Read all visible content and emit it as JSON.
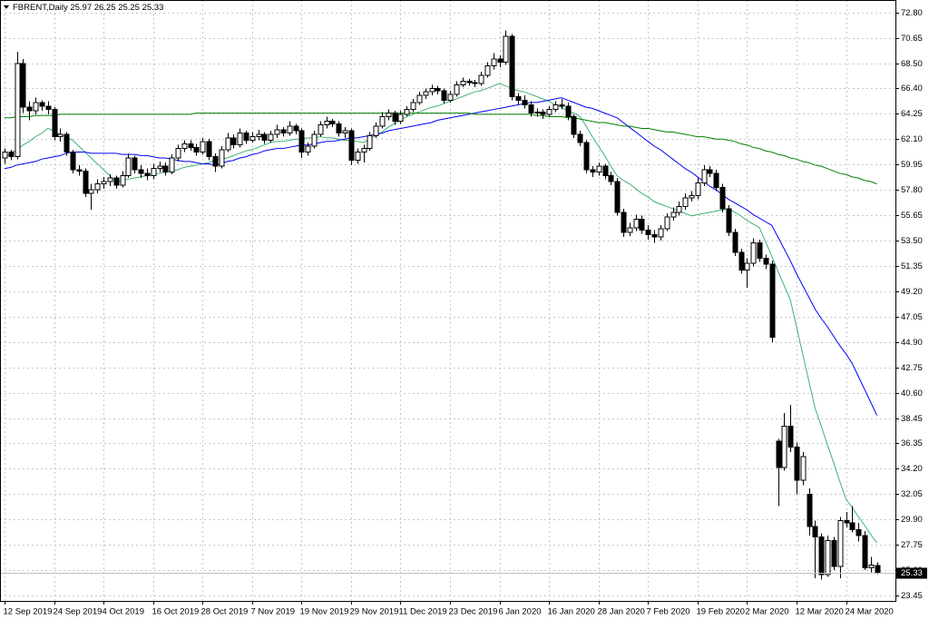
{
  "chart_data": {
    "type": "candlestick",
    "title": "FBRENT,Daily",
    "categories": [
      "12 Sep 2019",
      null,
      null,
      null,
      null,
      null,
      null,
      null,
      "24 Sep 2019",
      null,
      null,
      null,
      null,
      null,
      null,
      null,
      "4 Oct 2019",
      null,
      null,
      null,
      null,
      null,
      null,
      null,
      "16 Oct 2019",
      null,
      null,
      null,
      null,
      null,
      null,
      null,
      "28 Oct 2019",
      null,
      null,
      null,
      null,
      null,
      null,
      null,
      "7 Nov 2019",
      null,
      null,
      null,
      null,
      null,
      null,
      null,
      "19 Nov 2019",
      null,
      null,
      null,
      null,
      null,
      null,
      null,
      "29 Nov 2019",
      null,
      null,
      null,
      null,
      null,
      null,
      null,
      "11 Dec 2019",
      null,
      null,
      null,
      null,
      null,
      null,
      null,
      "23 Dec 2019",
      null,
      null,
      null,
      null,
      null,
      null,
      null,
      "6 Jan 2020",
      null,
      null,
      null,
      null,
      null,
      null,
      null,
      "16 Jan 2020",
      null,
      null,
      null,
      null,
      null,
      null,
      null,
      "28 Jan 2020",
      null,
      null,
      null,
      null,
      null,
      null,
      null,
      "7 Feb 2020",
      null,
      null,
      null,
      null,
      null,
      null,
      null,
      "19 Feb 2020",
      null,
      null,
      null,
      null,
      null,
      null,
      null,
      "2 Mar 2020",
      null,
      null,
      null,
      null,
      null,
      null,
      null,
      "12 Mar 2020",
      null,
      null,
      null,
      null,
      null,
      null,
      null,
      "24 Mar 2020",
      null,
      null,
      null,
      null,
      null
    ],
    "open": [
      60.5,
      61.0,
      60.6,
      68.5,
      64.8,
      64.5,
      65.2,
      64.9,
      64.6,
      62.3,
      62.5,
      61.0,
      59.5,
      59.4,
      57.5,
      57.8,
      58.3,
      58.5,
      58.8,
      58.2,
      59.0,
      60.5,
      59.5,
      59.2,
      59.0,
      59.6,
      59.8,
      59.3,
      60.5,
      61.3,
      61.7,
      61.4,
      61.0,
      61.9,
      60.6,
      59.8,
      61.2,
      62.2,
      61.6,
      62.6,
      62.0,
      62.3,
      62.5,
      62.0,
      62.5,
      62.9,
      62.6,
      63.2,
      62.8,
      61.0,
      61.5,
      62.5,
      63.3,
      63.6,
      63.4,
      62.6,
      62.8,
      60.3,
      61.0,
      61.3,
      62.4,
      63.2,
      64.0,
      64.3,
      63.6,
      64.2,
      64.6,
      65.2,
      65.8,
      66.1,
      66.4,
      66.2,
      65.4,
      65.9,
      66.7,
      67.0,
      66.9,
      66.8,
      67.5,
      68.3,
      68.9,
      68.6,
      70.8,
      65.7,
      65.4,
      65.0,
      64.3,
      64.4,
      64.2,
      64.6,
      65.0,
      64.9,
      64.0,
      62.5,
      61.8,
      59.5,
      59.3,
      59.8,
      59.0,
      58.5,
      55.9,
      54.2,
      54.6,
      55.3,
      54.4,
      54.0,
      53.8,
      54.5,
      55.5,
      55.9,
      56.4,
      57.1,
      57.3,
      58.4,
      59.5,
      59.2,
      58.0,
      56.2,
      54.2,
      52.5,
      51.0,
      51.6,
      53.3,
      52.0,
      51.5,
      36.5,
      34.3,
      37.8,
      36.0,
      33.2,
      32.0,
      29.3,
      28.4,
      25.2,
      28.1,
      25.9,
      29.8,
      29.6,
      29.0,
      28.5,
      25.8,
      25.97
    ],
    "high": [
      61.3,
      61.2,
      69.5,
      68.9,
      65.3,
      65.6,
      65.4,
      65.3,
      64.8,
      63.0,
      62.7,
      61.2,
      59.9,
      59.6,
      58.3,
      58.7,
      58.9,
      59.1,
      59.0,
      59.4,
      60.9,
      60.7,
      59.9,
      59.6,
      60.0,
      60.2,
      60.1,
      60.8,
      61.6,
      62.0,
      62.0,
      61.7,
      62.2,
      62.1,
      60.9,
      61.5,
      62.6,
      62.5,
      63.0,
      62.8,
      62.7,
      62.9,
      62.7,
      62.8,
      63.3,
      63.1,
      63.6,
      63.4,
      63.0,
      61.8,
      62.8,
      63.6,
      64.0,
      63.8,
      63.6,
      63.1,
      63.0,
      61.3,
      61.6,
      62.7,
      63.5,
      64.4,
      64.6,
      64.5,
      64.5,
      64.9,
      65.5,
      66.1,
      66.4,
      66.7,
      66.6,
      66.4,
      66.2,
      67.0,
      67.3,
      67.2,
      67.1,
      67.8,
      68.6,
      69.4,
      69.2,
      71.3,
      71.0,
      66.0,
      65.8,
      65.3,
      64.7,
      64.6,
      64.9,
      65.3,
      65.5,
      65.2,
      64.2,
      62.8,
      62.0,
      59.8,
      60.1,
      60.0,
      59.3,
      58.8,
      56.2,
      55.0,
      55.7,
      55.6,
      54.8,
      54.4,
      54.8,
      55.8,
      56.3,
      56.8,
      57.5,
      57.7,
      58.8,
      59.9,
      59.8,
      59.5,
      58.3,
      56.5,
      54.5,
      52.8,
      52.0,
      53.7,
      53.6,
      52.3,
      51.8,
      36.7,
      38.9,
      39.6,
      36.4,
      35.6,
      32.5,
      29.8,
      28.7,
      28.5,
      28.4,
      30.1,
      30.5,
      31.0,
      29.6,
      28.9,
      26.7,
      26.25
    ],
    "low": [
      60.0,
      60.3,
      60.4,
      64.3,
      63.7,
      64.2,
      64.5,
      64.2,
      62.0,
      61.9,
      60.7,
      59.2,
      59.0,
      57.2,
      56.1,
      57.5,
      57.9,
      58.1,
      57.9,
      58.0,
      58.8,
      59.2,
      58.8,
      58.6,
      58.7,
      59.3,
      59.0,
      59.1,
      60.2,
      61.0,
      61.1,
      60.7,
      60.8,
      60.3,
      59.3,
      59.6,
      61.0,
      61.3,
      61.4,
      61.7,
      61.8,
      62.0,
      61.7,
      61.8,
      62.2,
      62.3,
      62.4,
      62.5,
      60.5,
      60.7,
      61.3,
      62.3,
      63.0,
      63.1,
      62.3,
      62.2,
      59.9,
      60.0,
      60.1,
      61.1,
      62.2,
      63.0,
      63.7,
      63.3,
      63.4,
      64.0,
      64.4,
      65.0,
      65.5,
      65.8,
      65.9,
      65.1,
      65.2,
      65.7,
      66.5,
      66.6,
      66.5,
      66.6,
      67.3,
      68.0,
      68.2,
      68.4,
      65.4,
      65.0,
      64.7,
      64.0,
      64.0,
      63.8,
      64.0,
      64.4,
      64.6,
      63.7,
      62.2,
      61.5,
      59.2,
      58.9,
      59.0,
      58.7,
      58.2,
      55.6,
      53.8,
      53.9,
      54.3,
      54.1,
      53.6,
      53.3,
      53.5,
      54.3,
      55.2,
      55.6,
      56.1,
      56.8,
      57.0,
      58.1,
      58.9,
      57.7,
      55.9,
      53.9,
      52.2,
      50.7,
      49.5,
      51.3,
      51.7,
      51.1,
      44.9,
      31.0,
      34.0,
      35.6,
      32.0,
      32.8,
      28.5,
      24.9,
      24.8,
      25.0,
      25.6,
      24.9,
      29.2,
      28.8,
      28.0,
      25.6,
      25.4,
      25.25
    ],
    "close": [
      61.0,
      60.6,
      68.5,
      64.8,
      64.5,
      65.2,
      64.9,
      64.6,
      62.3,
      62.5,
      61.0,
      59.5,
      59.4,
      57.5,
      57.8,
      58.3,
      58.5,
      58.8,
      58.2,
      59.0,
      60.5,
      59.5,
      59.2,
      59.0,
      59.6,
      59.8,
      59.3,
      60.5,
      61.3,
      61.7,
      61.4,
      61.0,
      61.9,
      60.6,
      59.8,
      61.2,
      62.2,
      61.6,
      62.6,
      62.0,
      62.3,
      62.5,
      62.0,
      62.5,
      62.9,
      62.6,
      63.2,
      62.8,
      61.0,
      61.5,
      62.5,
      63.3,
      63.6,
      63.4,
      62.6,
      62.8,
      60.3,
      61.0,
      61.3,
      62.4,
      63.2,
      64.0,
      64.3,
      63.6,
      64.2,
      64.6,
      65.2,
      65.8,
      66.1,
      66.4,
      66.2,
      65.4,
      65.9,
      66.7,
      67.0,
      66.9,
      66.8,
      67.5,
      68.3,
      68.9,
      68.6,
      70.8,
      65.7,
      65.4,
      65.0,
      64.3,
      64.4,
      64.2,
      64.6,
      65.0,
      64.9,
      64.0,
      62.5,
      61.8,
      59.5,
      59.3,
      59.8,
      59.0,
      58.5,
      55.9,
      54.2,
      54.6,
      55.3,
      54.4,
      54.0,
      53.8,
      54.5,
      55.5,
      55.9,
      56.4,
      57.1,
      57.3,
      58.4,
      59.5,
      59.2,
      58.0,
      56.2,
      54.2,
      52.5,
      51.0,
      51.6,
      53.3,
      52.0,
      51.5,
      45.3,
      34.3,
      37.8,
      36.0,
      33.2,
      35.2,
      29.3,
      28.4,
      25.2,
      28.1,
      25.9,
      29.8,
      29.6,
      29.0,
      28.5,
      25.8,
      26.0,
      25.33
    ],
    "up_color": "#ffffff",
    "down_color": "#000000",
    "series": [
      {
        "color": "#3cb371",
        "values": [
          60.5,
          60.9,
          61.2,
          61.6,
          61.9,
          62.3,
          62.6,
          63.0,
          62.8,
          62.5,
          62.3,
          62.0,
          61.5,
          61.0,
          60.5,
          60.0,
          59.5,
          59.0,
          58.5,
          58.6,
          58.7,
          58.8,
          58.9,
          59.0,
          59.1,
          59.2,
          59.3,
          59.4,
          59.5,
          59.7,
          59.8,
          59.9,
          60.0,
          60.1,
          60.3,
          60.4,
          60.5,
          60.7,
          60.9,
          61.1,
          61.2,
          61.4,
          61.6,
          61.8,
          61.9,
          61.9,
          62.0,
          62.1,
          62.1,
          62.2,
          62.2,
          62.3,
          62.2,
          62.2,
          62.1,
          62.0,
          62.0,
          61.9,
          61.8,
          62.1,
          62.4,
          62.7,
          63.1,
          63.4,
          63.7,
          64.0,
          64.2,
          64.4,
          64.6,
          64.8,
          64.9,
          65.1,
          65.3,
          65.5,
          65.7,
          65.9,
          66.1,
          66.2,
          66.4,
          66.6,
          66.8,
          66.6,
          66.4,
          66.2,
          66.1,
          65.9,
          65.7,
          65.5,
          65.3,
          65.0,
          64.8,
          64.5,
          64.3,
          64.0,
          63.2,
          62.3,
          61.5,
          60.7,
          59.8,
          59.0,
          58.6,
          58.3,
          57.9,
          57.5,
          57.2,
          56.8,
          56.6,
          56.4,
          56.2,
          56.0,
          55.8,
          55.6,
          55.7,
          55.8,
          55.9,
          56.0,
          56.1,
          56.2,
          55.9,
          55.6,
          55.2,
          54.9,
          54.6,
          53.4,
          52.2,
          50.9,
          49.7,
          48.5,
          46.2,
          43.9,
          41.6,
          39.3,
          37.8,
          36.2,
          34.7,
          33.1,
          31.6,
          30.9,
          30.1,
          29.4,
          28.6,
          27.9
        ]
      },
      {
        "color": "#0000ff",
        "values": [
          59.6,
          59.7,
          59.9,
          60.0,
          60.1,
          60.2,
          60.4,
          60.5,
          60.6,
          60.7,
          60.9,
          61.0,
          61.0,
          61.0,
          60.9,
          60.9,
          60.9,
          60.9,
          60.9,
          60.8,
          60.8,
          60.8,
          60.7,
          60.7,
          60.6,
          60.5,
          60.5,
          60.4,
          60.3,
          60.2,
          60.2,
          60.1,
          60.0,
          60.0,
          59.9,
          60.0,
          60.2,
          60.3,
          60.5,
          60.6,
          60.8,
          60.9,
          61.1,
          61.2,
          61.3,
          61.3,
          61.4,
          61.5,
          61.6,
          61.6,
          61.7,
          61.8,
          61.9,
          61.9,
          62.0,
          62.1,
          62.2,
          62.2,
          62.3,
          62.4,
          62.5,
          62.6,
          62.8,
          62.9,
          63.0,
          63.1,
          63.2,
          63.3,
          63.4,
          63.5,
          63.7,
          63.8,
          63.9,
          64.0,
          64.1,
          64.2,
          64.3,
          64.4,
          64.5,
          64.6,
          64.7,
          64.8,
          64.9,
          65.0,
          65.1,
          65.2,
          65.2,
          65.3,
          65.4,
          65.5,
          65.6,
          65.4,
          65.2,
          65.0,
          64.8,
          64.7,
          64.5,
          64.3,
          64.1,
          63.9,
          63.5,
          63.1,
          62.7,
          62.3,
          61.9,
          61.5,
          61.2,
          60.8,
          60.4,
          60.0,
          59.6,
          59.3,
          58.9,
          58.5,
          58.1,
          57.8,
          57.4,
          57.0,
          56.7,
          56.4,
          56.1,
          55.7,
          55.4,
          55.1,
          54.8,
          53.8,
          52.8,
          51.8,
          50.7,
          49.7,
          48.7,
          47.7,
          46.9,
          46.2,
          45.4,
          44.6,
          43.9,
          43.1,
          42.0,
          40.9,
          39.8,
          38.7
        ]
      },
      {
        "color": "#008000",
        "values": [
          63.9,
          63.9,
          64.0,
          64.0,
          64.0,
          64.1,
          64.1,
          64.1,
          64.1,
          64.2,
          64.2,
          64.2,
          64.2,
          64.2,
          64.2,
          64.2,
          64.2,
          64.2,
          64.2,
          64.2,
          64.2,
          64.2,
          64.2,
          64.2,
          64.2,
          64.2,
          64.2,
          64.2,
          64.2,
          64.2,
          64.2,
          64.3,
          64.3,
          64.3,
          64.3,
          64.3,
          64.3,
          64.3,
          64.3,
          64.3,
          64.3,
          64.3,
          64.3,
          64.3,
          64.3,
          64.3,
          64.3,
          64.3,
          64.3,
          64.3,
          64.3,
          64.3,
          64.3,
          64.3,
          64.3,
          64.3,
          64.3,
          64.3,
          64.3,
          64.3,
          64.3,
          64.3,
          64.3,
          64.3,
          64.3,
          64.3,
          64.3,
          64.3,
          64.3,
          64.3,
          64.3,
          64.3,
          64.3,
          64.3,
          64.3,
          64.3,
          64.2,
          64.2,
          64.2,
          64.2,
          64.2,
          64.2,
          64.2,
          64.2,
          64.2,
          64.2,
          64.1,
          64.1,
          64.0,
          64.0,
          64.0,
          63.9,
          63.9,
          63.8,
          63.7,
          63.6,
          63.5,
          63.5,
          63.4,
          63.3,
          63.2,
          63.2,
          63.1,
          63.0,
          63.0,
          62.9,
          62.8,
          62.7,
          62.7,
          62.6,
          62.5,
          62.4,
          62.3,
          62.3,
          62.2,
          62.1,
          62.1,
          62.0,
          61.9,
          61.7,
          61.6,
          61.4,
          61.3,
          61.1,
          61.0,
          60.8,
          60.7,
          60.5,
          60.4,
          60.2,
          60.1,
          59.9,
          59.8,
          59.6,
          59.4,
          59.2,
          59.1,
          58.9,
          58.8,
          58.6,
          58.5,
          58.3
        ]
      }
    ],
    "ylim": [
      22.98,
      73.88
    ],
    "yticks": [
      {
        "value": 72.8,
        "label": "72.80"
      },
      70.65,
      {
        "value": 68.5,
        "label": "68.50"
      },
      {
        "value": 66.4,
        "label": "66.40"
      },
      64.25,
      {
        "value": 62.1,
        "label": "62.10"
      },
      59.95,
      {
        "value": 57.8,
        "label": "57.80"
      },
      55.65,
      {
        "value": 53.5,
        "label": "53.50"
      },
      51.35,
      {
        "value": 49.2,
        "label": "49.20"
      },
      47.05,
      {
        "value": 44.9,
        "label": "44.90"
      },
      42.75,
      {
        "value": 40.6,
        "label": "40.60"
      },
      38.45,
      36.35,
      {
        "value": 34.2,
        "label": "34.20"
      },
      32.05,
      {
        "value": 29.9,
        "label": "29.90"
      },
      27.75,
      {
        "value": 25.6,
        "label": "25.60"
      },
      23.45
    ],
    "grid": true
  }
}
